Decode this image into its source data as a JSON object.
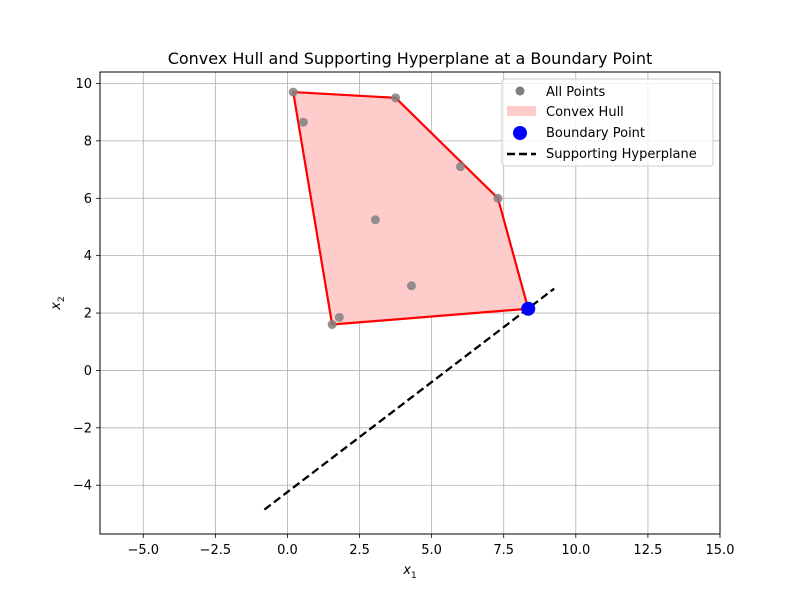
{
  "chart_data": {
    "type": "scatter",
    "title": "Convex Hull and Supporting Hyperplane at a Boundary Point",
    "xlabel": {
      "base": "x",
      "sub": "1"
    },
    "ylabel": {
      "base": "x",
      "sub": "2"
    },
    "xlim": [
      -6.5,
      15.0
    ],
    "ylim": [
      -5.7,
      10.4
    ],
    "xticks": [
      -5.0,
      -2.5,
      0.0,
      2.5,
      5.0,
      7.5,
      10.0,
      12.5,
      15.0
    ],
    "xtick_labels": [
      "−5.0",
      "−2.5",
      "0.0",
      "2.5",
      "5.0",
      "7.5",
      "10.0",
      "12.5",
      "15.0"
    ],
    "yticks": [
      -4,
      -2,
      0,
      2,
      4,
      6,
      8,
      10
    ],
    "ytick_labels": [
      "−4",
      "−2",
      "0",
      "2",
      "4",
      "6",
      "8",
      "10"
    ],
    "grid": true,
    "legend_position": "top-right",
    "series": [
      {
        "name": "All Points",
        "kind": "scatter",
        "color": "#808080",
        "points": [
          {
            "x": 0.2,
            "y": 9.7
          },
          {
            "x": 3.75,
            "y": 9.5
          },
          {
            "x": 0.55,
            "y": 8.65
          },
          {
            "x": 6.0,
            "y": 7.1
          },
          {
            "x": 7.3,
            "y": 6.0
          },
          {
            "x": 3.05,
            "y": 5.25
          },
          {
            "x": 4.3,
            "y": 2.95
          },
          {
            "x": 1.8,
            "y": 1.85
          },
          {
            "x": 1.55,
            "y": 1.6
          },
          {
            "x": 8.35,
            "y": 2.15
          }
        ]
      },
      {
        "name": "Convex Hull",
        "kind": "polygon",
        "fill": "#ffcccc",
        "edge": "#ff0000",
        "vertices": [
          {
            "x": 0.2,
            "y": 9.7
          },
          {
            "x": 3.75,
            "y": 9.5
          },
          {
            "x": 7.3,
            "y": 6.0
          },
          {
            "x": 8.35,
            "y": 2.15
          },
          {
            "x": 1.55,
            "y": 1.6
          }
        ]
      },
      {
        "name": "Boundary Point",
        "kind": "marker",
        "color": "#0000ff",
        "point": {
          "x": 8.35,
          "y": 2.15
        }
      },
      {
        "name": "Supporting Hyperplane",
        "kind": "dashed-line",
        "color": "#000000",
        "start": {
          "x": -0.8,
          "y": -4.85
        },
        "end": {
          "x": 9.25,
          "y": 2.85
        }
      }
    ],
    "legend": [
      "All Points",
      "Convex Hull",
      "Boundary Point",
      "Supporting Hyperplane"
    ]
  }
}
